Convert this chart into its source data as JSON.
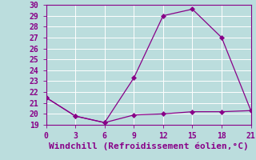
{
  "xlabel": "Windchill (Refroidissement éolien,°C)",
  "x": [
    0,
    3,
    6,
    9,
    12,
    15,
    18,
    21
  ],
  "y_upper": [
    21.5,
    19.8,
    19.2,
    23.3,
    29.0,
    29.6,
    27.0,
    20.3
  ],
  "y_lower": [
    21.5,
    19.8,
    19.2,
    19.9,
    20.0,
    20.2,
    20.2,
    20.3
  ],
  "line_color": "#880088",
  "marker": "D",
  "marker_size": 3,
  "bg_color": "#bbdddd",
  "grid_color": "#cceeee",
  "xlim": [
    0,
    21
  ],
  "ylim": [
    19,
    30
  ],
  "xticks": [
    0,
    3,
    6,
    9,
    12,
    15,
    18,
    21
  ],
  "yticks": [
    19,
    20,
    21,
    22,
    23,
    24,
    25,
    26,
    27,
    28,
    29,
    30
  ],
  "tick_label_color": "#880088",
  "xlabel_color": "#880088",
  "xlabel_fontsize": 8,
  "tick_fontsize": 7
}
